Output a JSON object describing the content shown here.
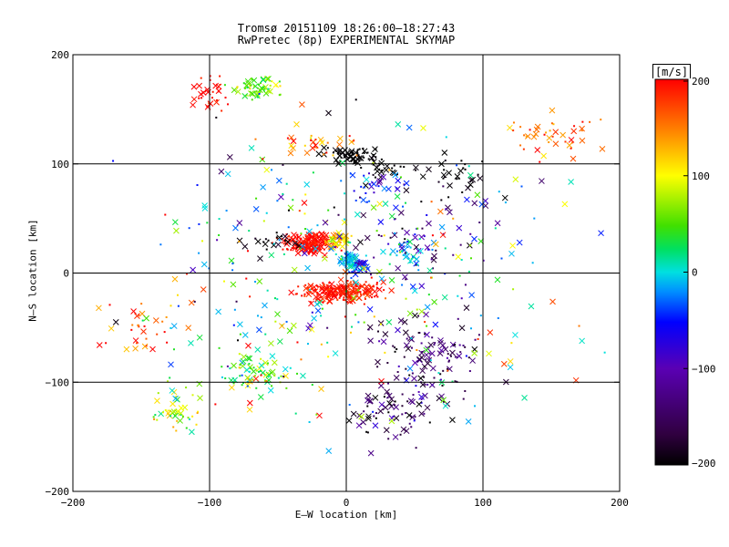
{
  "chart_data": {
    "type": "scatter",
    "title": "Tromsø 20151109 18:26:00–18:27:43",
    "subtitle": "RwPretec (8p) EXPERIMENTAL SKYMAP",
    "xlabel": "E–W location [km]",
    "ylabel": "N–S location [km]",
    "xlim": [
      -200,
      200
    ],
    "ylim": [
      -200,
      200
    ],
    "xticks": [
      -200,
      -100,
      0,
      100,
      200
    ],
    "yticks": [
      -200,
      -100,
      0,
      100,
      200
    ],
    "grid": true,
    "colorbar": {
      "label": "[m/s]",
      "range": [
        -200,
        200
      ],
      "ticks": [
        200,
        100,
        0,
        -100,
        -200
      ],
      "colormap": "rainbow (black → purple → blue → cyan → green → yellow → red)"
    },
    "markers": [
      "x",
      "dot"
    ],
    "clusters": [
      {
        "x": -27,
        "y": 27,
        "sx": 15,
        "sy": 6,
        "v": 200,
        "vs": 15,
        "n": 160
      },
      {
        "x": -10,
        "y": -18,
        "sx": 18,
        "sy": 6,
        "v": 195,
        "vs": 15,
        "n": 150
      },
      {
        "x": 10,
        "y": -14,
        "sx": 12,
        "sy": 5,
        "v": 190,
        "vs": 20,
        "n": 60
      },
      {
        "x": -5,
        "y": 30,
        "sx": 6,
        "sy": 4,
        "v": 120,
        "vs": 40,
        "n": 40
      },
      {
        "x": 3,
        "y": 10,
        "sx": 6,
        "sy": 6,
        "v": -40,
        "vs": 40,
        "n": 60
      },
      {
        "x": 12,
        "y": 5,
        "sx": 6,
        "sy": 4,
        "v": -110,
        "vs": 20,
        "n": 25
      },
      {
        "x": 3,
        "y": 108,
        "sx": 15,
        "sy": 5,
        "v": -200,
        "vs": 5,
        "n": 70
      },
      {
        "x": 30,
        "y": 95,
        "sx": 15,
        "sy": 8,
        "v": -200,
        "vs": 10,
        "n": 25
      },
      {
        "x": 20,
        "y": 80,
        "sx": 15,
        "sy": 10,
        "v": -100,
        "vs": 30,
        "n": 25
      },
      {
        "x": -65,
        "y": 170,
        "sx": 15,
        "sy": 7,
        "v": 70,
        "vs": 40,
        "n": 60
      },
      {
        "x": -100,
        "y": 165,
        "sx": 10,
        "sy": 10,
        "v": 195,
        "vs": 15,
        "n": 30
      },
      {
        "x": -65,
        "y": -90,
        "sx": 20,
        "sy": 12,
        "v": 40,
        "vs": 60,
        "n": 70
      },
      {
        "x": -125,
        "y": -125,
        "sx": 12,
        "sy": 15,
        "v": 80,
        "vs": 60,
        "n": 45
      },
      {
        "x": 55,
        "y": -80,
        "sx": 30,
        "sy": 25,
        "v": -160,
        "vs": 30,
        "n": 130
      },
      {
        "x": 30,
        "y": -130,
        "sx": 25,
        "sy": 20,
        "v": -160,
        "vs": 40,
        "n": 60
      },
      {
        "x": 55,
        "y": 40,
        "sx": 40,
        "sy": 30,
        "v": -150,
        "vs": 50,
        "n": 60
      },
      {
        "x": 150,
        "y": 125,
        "sx": 30,
        "sy": 15,
        "v": 170,
        "vs": 40,
        "n": 45
      },
      {
        "x": 85,
        "y": 90,
        "sx": 20,
        "sy": 15,
        "v": -200,
        "vs": 10,
        "n": 30
      },
      {
        "x": 45,
        "y": 20,
        "sx": 10,
        "sy": 10,
        "v": -30,
        "vs": 60,
        "n": 30
      },
      {
        "x": -150,
        "y": -50,
        "sx": 20,
        "sy": 15,
        "v": 180,
        "vs": 40,
        "n": 30
      },
      {
        "x": -20,
        "y": 120,
        "sx": 20,
        "sy": 10,
        "v": 160,
        "vs": 50,
        "n": 30
      },
      {
        "x": -55,
        "y": 30,
        "sx": 15,
        "sy": 5,
        "v": -200,
        "vs": 20,
        "n": 20
      },
      {
        "x": 0,
        "y": 0,
        "sx": 110,
        "sy": 95,
        "v": 0,
        "vs": 150,
        "n": 360
      }
    ]
  }
}
